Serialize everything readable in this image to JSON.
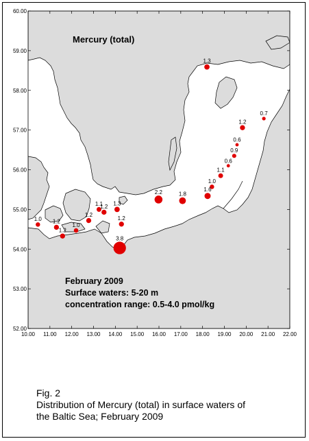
{
  "map": {
    "title": "Mercury (total)",
    "info": [
      "February 2009",
      "Surface waters: 5-20 m",
      "concentration range: 0.5-4.0 pmol/kg"
    ],
    "x_ticks": [
      "10.00",
      "11.00",
      "12.00",
      "13.00",
      "14.00",
      "15.00",
      "16.00",
      "17.00",
      "18.00",
      "19.00",
      "20.00",
      "21.00",
      "22.00"
    ],
    "y_ticks": [
      "60.00",
      "59.00",
      "58.00",
      "57.00",
      "56.00",
      "55.00",
      "54.00",
      "53.00",
      "52.00"
    ],
    "x_range": [
      10,
      22
    ],
    "y_range": [
      52,
      60
    ],
    "colors": {
      "land": "#dcdcdc",
      "sea": "#ffffff",
      "marker": "#e00000"
    },
    "stations": [
      {
        "lon": 18.2,
        "lat": 58.59,
        "value": 1.3,
        "label": "1.3"
      },
      {
        "lon": 20.81,
        "lat": 57.29,
        "value": 0.7,
        "label": "0.7"
      },
      {
        "lon": 19.83,
        "lat": 57.06,
        "value": 1.2,
        "label": "1.2"
      },
      {
        "lon": 19.58,
        "lat": 56.63,
        "value": 0.6,
        "label": "0.6"
      },
      {
        "lon": 19.45,
        "lat": 56.35,
        "value": 0.9,
        "label": "0.9"
      },
      {
        "lon": 19.18,
        "lat": 56.1,
        "value": 0.6,
        "label": "0.6"
      },
      {
        "lon": 18.83,
        "lat": 55.85,
        "value": 1.1,
        "label": "1.1"
      },
      {
        "lon": 18.43,
        "lat": 55.57,
        "value": 1.0,
        "label": "1.0"
      },
      {
        "lon": 18.23,
        "lat": 55.34,
        "value": 1.6,
        "label": "1.6"
      },
      {
        "lon": 15.98,
        "lat": 55.25,
        "value": 2.2,
        "label": "2.2"
      },
      {
        "lon": 17.08,
        "lat": 55.22,
        "value": 1.8,
        "label": "1.8"
      },
      {
        "lon": 14.08,
        "lat": 55.0,
        "value": 1.3,
        "label": "1.3"
      },
      {
        "lon": 13.25,
        "lat": 55.0,
        "value": 1.1,
        "label": "1.1"
      },
      {
        "lon": 13.48,
        "lat": 54.93,
        "value": 1.2,
        "label": "1.2"
      },
      {
        "lon": 14.28,
        "lat": 54.63,
        "value": 1.2,
        "label": "1.2"
      },
      {
        "lon": 12.78,
        "lat": 54.72,
        "value": 1.2,
        "label": "1.2"
      },
      {
        "lon": 10.45,
        "lat": 54.62,
        "value": 1.0,
        "label": "1.0"
      },
      {
        "lon": 11.3,
        "lat": 54.55,
        "value": 1.2,
        "label": "1.2"
      },
      {
        "lon": 12.2,
        "lat": 54.47,
        "value": 1.0,
        "label": "1.0"
      },
      {
        "lon": 11.58,
        "lat": 54.33,
        "value": 1.2,
        "label": "1.2"
      },
      {
        "lon": 14.2,
        "lat": 54.03,
        "value": 3.8,
        "label": "3.8"
      }
    ]
  },
  "caption": {
    "lines": [
      "Fig. 2",
      "Distribution of Mercury (total) in surface waters of",
      "the Baltic Sea; February 2009"
    ]
  }
}
